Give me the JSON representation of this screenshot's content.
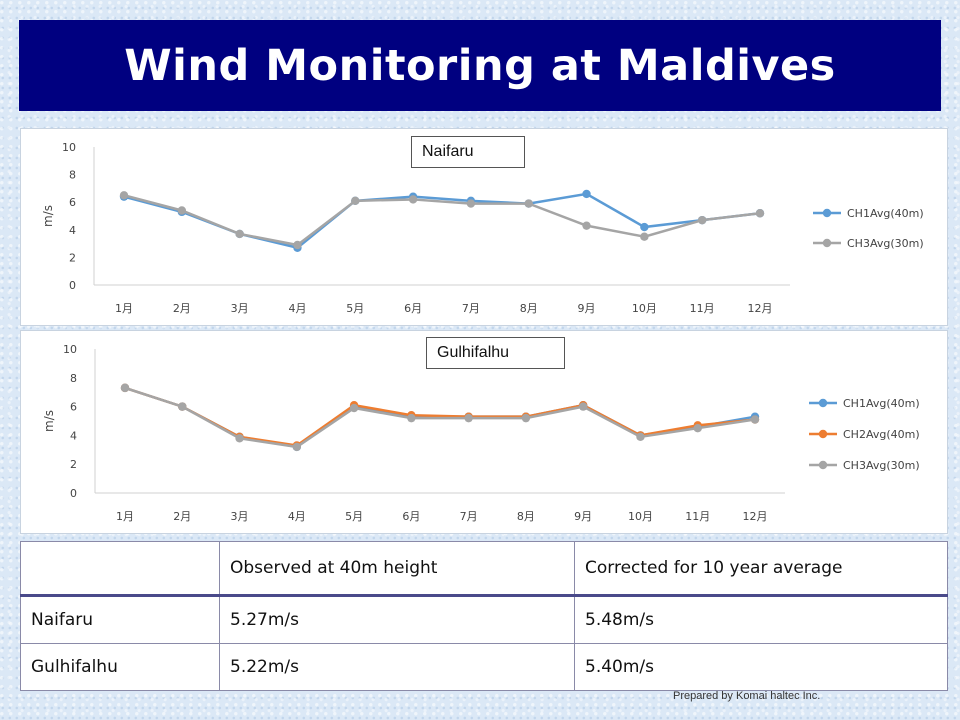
{
  "title": "Wind Monitoring at Maldives",
  "chart_data": [
    {
      "type": "line",
      "site_label": "Naifaru",
      "categories": [
        "1月",
        "2月",
        "3月",
        "4月",
        "5月",
        "6月",
        "7月",
        "8月",
        "9月",
        "10月",
        "11月",
        "12月"
      ],
      "ylabel": "m/s",
      "ylim": [
        0,
        10
      ],
      "yticks": [
        0,
        2,
        4,
        6,
        8,
        10
      ],
      "grid": false,
      "legend": "right",
      "series": [
        {
          "name": "CH1Avg(40m)",
          "color": "#5b9bd5",
          "values": [
            6.4,
            5.3,
            3.7,
            2.7,
            6.1,
            6.4,
            6.1,
            5.9,
            6.6,
            4.2,
            4.7,
            5.2
          ]
        },
        {
          "name": "CH3Avg(30m)",
          "color": "#a5a5a5",
          "values": [
            6.5,
            5.4,
            3.7,
            2.9,
            6.1,
            6.2,
            5.9,
            5.9,
            4.3,
            3.5,
            4.7,
            5.2
          ]
        }
      ]
    },
    {
      "type": "line",
      "site_label": "Gulhifalhu",
      "categories": [
        "1月",
        "2月",
        "3月",
        "4月",
        "5月",
        "6月",
        "7月",
        "8月",
        "9月",
        "10月",
        "11月",
        "12月"
      ],
      "ylabel": "m/s",
      "ylim": [
        0,
        10
      ],
      "yticks": [
        0,
        2,
        4,
        6,
        8,
        10
      ],
      "grid": false,
      "legend": "right",
      "series": [
        {
          "name": "CH1Avg(40m)",
          "color": "#5b9bd5",
          "values": [
            7.3,
            6.0,
            3.9,
            3.2,
            6.0,
            5.3,
            5.3,
            5.3,
            6.1,
            4.0,
            4.6,
            5.3
          ]
        },
        {
          "name": "CH2Avg(40m)",
          "color": "#ed7d31",
          "values": [
            7.3,
            6.0,
            3.9,
            3.3,
            6.1,
            5.4,
            5.3,
            5.3,
            6.1,
            4.0,
            4.7,
            5.1
          ]
        },
        {
          "name": "CH3Avg(30m)",
          "color": "#a5a5a5",
          "values": [
            7.3,
            6.0,
            3.8,
            3.2,
            5.9,
            5.2,
            5.2,
            5.2,
            6.0,
            3.9,
            4.5,
            5.1
          ]
        }
      ]
    }
  ],
  "table": {
    "headers": [
      "",
      "Observed at 40m height",
      "Corrected for 10 year average"
    ],
    "rows": [
      [
        "Naifaru",
        "5.27m/s",
        "5.48m/s"
      ],
      [
        "Gulhifalhu",
        "5.22m/s",
        "5.40m/s"
      ]
    ]
  },
  "footer": "Prepared by Komai haltec Inc."
}
